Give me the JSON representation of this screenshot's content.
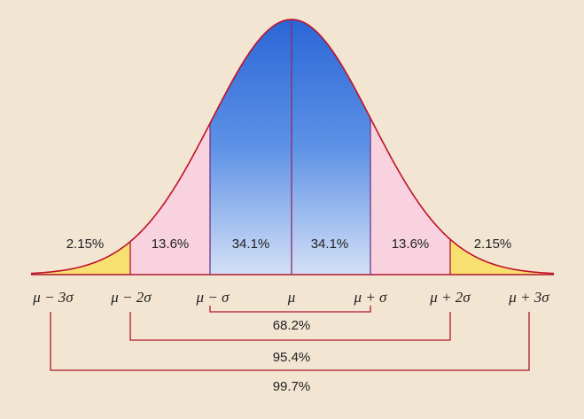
{
  "regions": [
    {
      "label": "2.15%"
    },
    {
      "label": "13.6%"
    },
    {
      "label": "34.1%"
    },
    {
      "label": "34.1%"
    },
    {
      "label": "13.6%"
    },
    {
      "label": "2.15%"
    }
  ],
  "axis_labels": [
    "μ − 3σ",
    "μ − 2σ",
    "μ − σ",
    "μ",
    "μ + σ",
    "μ + 2σ",
    "μ + 3σ"
  ],
  "ranges": [
    {
      "label": "68.2%"
    },
    {
      "label": "95.4%"
    },
    {
      "label": "99.7%"
    }
  ]
}
